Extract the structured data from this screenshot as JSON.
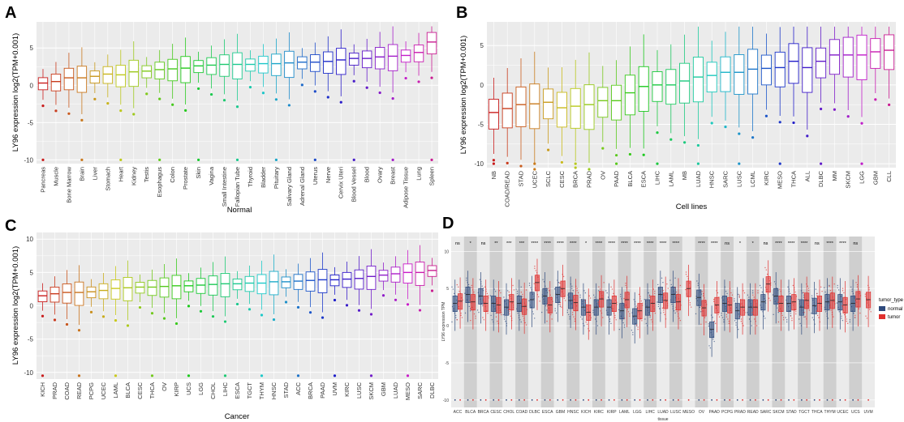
{
  "colors": {
    "panel_bg": "#ebebeb",
    "grid": "#ffffff",
    "normal": "#2e4a7d",
    "tumor": "#e0302f",
    "shade": "#cfcfcf"
  },
  "chart_data": [
    {
      "id": "A",
      "type": "boxplot",
      "panel_label": "A",
      "xlabel": "Normal",
      "ylabel": "LY96 expression log2(TPM+0.001)",
      "ylim": [
        -10.5,
        8.5
      ],
      "yticks": [
        -10,
        -5,
        0,
        5
      ],
      "categories": [
        "Pancreas",
        "Muscle",
        "Bone Marrow",
        "Brain",
        "Liver",
        "Stomach",
        "Heart",
        "Kidney",
        "Testis",
        "Esophagus",
        "Colon",
        "Prostate",
        "Skin",
        "Vagina",
        "Small Intestine",
        "Fallopian Tube",
        "Thyroid",
        "Bladder",
        "Pituitary",
        "Salivary Gland",
        "Adrenal Gland",
        "Uterus",
        "Nerve",
        "Cervix Uteri",
        "Blood Vessel",
        "Blood",
        "Ovary",
        "Breast",
        "Adipose Tissue",
        "Lung",
        "Spleen"
      ],
      "medians": [
        0.3,
        0.5,
        1.0,
        1.0,
        1.2,
        1.5,
        1.4,
        1.8,
        1.9,
        2.1,
        2.2,
        2.3,
        2.6,
        2.7,
        2.8,
        2.8,
        2.8,
        2.9,
        2.9,
        3.0,
        3.1,
        3.1,
        3.2,
        3.4,
        3.6,
        3.6,
        3.8,
        3.9,
        4.0,
        4.4,
        5.8
      ]
    },
    {
      "id": "B",
      "type": "boxplot",
      "panel_label": "B",
      "xlabel": "Cell lines",
      "ylabel": "LY96 expression log2(TPM+0.001)",
      "ylim": [
        -10.5,
        8
      ],
      "yticks": [
        -10,
        -5,
        0,
        5
      ],
      "categories": [
        "NB",
        "COAD/READ",
        "STAD",
        "UCEC",
        "SCLC",
        "CESC",
        "BRCA",
        "PRAD",
        "OV",
        "PAAD",
        "BLCA",
        "ESCA",
        "LIHC",
        "LAML",
        "MB",
        "LUAD",
        "HNSC",
        "SARC",
        "LUSC",
        "LCML",
        "KIRC",
        "MESO",
        "THCA",
        "ALL",
        "DLBC",
        "MM",
        "SKCM",
        "LGG",
        "GBM",
        "CLL"
      ],
      "medians": [
        -3.5,
        -3.0,
        -2.5,
        -2.4,
        -2.2,
        -2.9,
        -2.7,
        -2.5,
        -2.0,
        -2.0,
        -1.0,
        -0.2,
        0.0,
        0.0,
        0.5,
        1.0,
        1.2,
        1.6,
        1.6,
        2.0,
        2.1,
        2.2,
        3.0,
        2.2,
        3.0,
        3.8,
        3.8,
        3.8,
        4.2,
        4.4
      ]
    },
    {
      "id": "C",
      "type": "boxplot",
      "panel_label": "C",
      "xlabel": "Cancer",
      "ylabel": "LY96 expression log2(TPM+0.001)",
      "ylim": [
        -11,
        11
      ],
      "yticks": [
        -10,
        -5,
        0,
        5,
        10
      ],
      "categories": [
        "KICH",
        "PRAD",
        "COAD",
        "READ",
        "PCPG",
        "UCEC",
        "LAML",
        "BLCA",
        "CESC",
        "THCA",
        "OV",
        "KIRP",
        "UCS",
        "LGG",
        "CHOL",
        "LIHC",
        "ESCA",
        "TGCT",
        "THYM",
        "HNSC",
        "STAD",
        "ACC",
        "BRCA",
        "PAAD",
        "UVM",
        "KIRC",
        "LUSC",
        "SKCM",
        "GBM",
        "LUAD",
        "MESO",
        "SARC",
        "DLBC"
      ],
      "medians": [
        1.5,
        1.8,
        2.0,
        2.0,
        2.1,
        2.3,
        2.6,
        2.7,
        2.8,
        2.8,
        2.9,
        3.0,
        3.0,
        3.1,
        3.2,
        3.3,
        3.3,
        3.4,
        3.4,
        3.6,
        3.6,
        3.7,
        3.8,
        3.9,
        3.9,
        4.0,
        4.1,
        4.4,
        4.6,
        4.8,
        5.0,
        5.0,
        5.3
      ]
    },
    {
      "id": "D",
      "type": "boxplot_paired",
      "panel_label": "D",
      "xlabel": "tissue",
      "ylabel": "LY96 expression TPM",
      "ylim": [
        -11,
        12
      ],
      "yticks": [
        -10,
        -5,
        0,
        5,
        10
      ],
      "legend_title": "tumor_type",
      "legend_items": [
        "normal",
        "tumor"
      ],
      "categories": [
        "ACC",
        "BLCA",
        "BRCA",
        "CESC",
        "CHOL",
        "COAD",
        "DLBC",
        "ESCA",
        "GBM",
        "HNSC",
        "KICH",
        "KIRC",
        "KIRP",
        "LAML",
        "LGG",
        "LIHC",
        "LUAD",
        "LUSC",
        "MESO",
        "OV",
        "PAAD",
        "PCPG",
        "PRAD",
        "READ",
        "SARC",
        "SKCM",
        "STAD",
        "TGCT",
        "THCA",
        "THYM",
        "UCEC",
        "UCS",
        "UVM"
      ],
      "significance": [
        "ns",
        "*",
        "ns",
        "**",
        "***",
        "***",
        "****",
        "****",
        "****",
        "****",
        "*",
        "****",
        "****",
        "****",
        "****",
        "****",
        "****",
        "****",
        "",
        "****",
        "****",
        "ns",
        "*",
        "*",
        "ns",
        "****",
        "****",
        "****",
        "ns",
        "****",
        "****",
        "ns",
        ""
      ],
      "normal_medians": [
        3.0,
        4.2,
        4.0,
        3.0,
        2.5,
        3.0,
        3.5,
        4.0,
        4.2,
        3.4,
        2.5,
        2.5,
        2.5,
        2.0,
        1.3,
        2.5,
        4.2,
        4.2,
        null,
        3.8,
        -0.5,
        3.0,
        2.0,
        2.5,
        3.2,
        4.0,
        3.0,
        2.5,
        2.7,
        3.2,
        3.2,
        3.0,
        null
      ],
      "tumor_medians": [
        3.3,
        3.2,
        3.0,
        2.8,
        3.2,
        2.6,
        5.8,
        2.8,
        5.0,
        3.1,
        1.8,
        3.6,
        3.0,
        3.5,
        2.0,
        3.0,
        3.4,
        3.2,
        5.0,
        2.4,
        2.8,
        2.8,
        2.5,
        2.5,
        5.6,
        3.0,
        3.2,
        3.4,
        3.0,
        3.4,
        2.8,
        3.6,
        3.5
      ]
    }
  ]
}
